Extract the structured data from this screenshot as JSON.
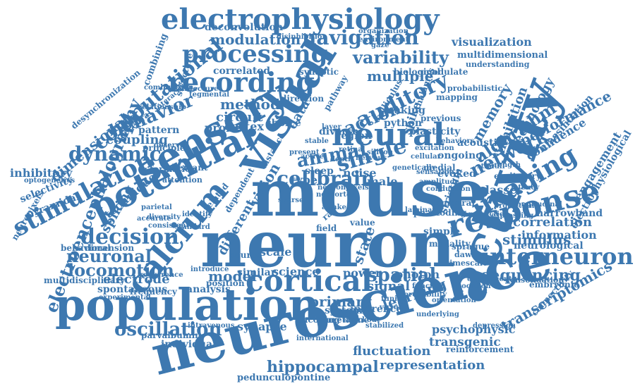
{
  "accent_color": "#3d78b0",
  "words": [
    "mouse",
    "neuron",
    "neuroscience",
    "activity",
    "population",
    "visual",
    "sensory",
    "electrophysiology",
    "recording",
    "processing",
    "potential",
    "calcium",
    "neural",
    "cortical",
    "response",
    "imaging",
    "interneuron",
    "stimulation",
    "navigation",
    "modulation",
    "variability",
    "auditory",
    "action",
    "animal",
    "cellbrain",
    "single",
    "network",
    "algorithm",
    "decision",
    "dynamic",
    "behavior",
    "computational",
    "electroencephalography",
    "locomotion",
    "oscillation",
    "hippocampal",
    "representation",
    "fluctuation",
    "transgenic",
    "spatial",
    "sequencing",
    "transcriptomics",
    "stimulus",
    "correlation",
    "information",
    "neurological",
    "performance",
    "engagement",
    "memory",
    "inhibition",
    "technology",
    "primary",
    "learning",
    "visualization",
    "multidimensional",
    "multiple",
    "method",
    "circuit",
    "probe",
    "electrode",
    "spontaneous",
    "frequency",
    "model",
    "cortex",
    "synapse",
    "individual",
    "parvalbumin",
    "pedunculopontine",
    "psychophysic",
    "inhibitory",
    "selectivity",
    "pyramidal",
    "neuropixels",
    "dimensional",
    "coupling",
    "combining",
    "desynchronization",
    "deconvolution",
    "correlated",
    "synaptic",
    "biological",
    "modulate",
    "understanding",
    "spike",
    "striatum",
    "classes",
    "acoustic",
    "evoked",
    "ongoing",
    "confidence",
    "classification",
    "excitatory",
    "narrowband",
    "electrophysiological",
    "connectivity",
    "consolidation",
    "embryonic",
    "reinforcement",
    "science",
    "system",
    "inference",
    "encoding",
    "urethane",
    "analysis",
    "multidisciplinary",
    "behavioral",
    "dimension",
    "neuronal",
    "spiking",
    "technique",
    "pattern",
    "structure",
    "vision",
    "signal",
    "photon",
    "power",
    "state",
    "type",
    "noise",
    "male",
    "sleep",
    "scale",
    "distance",
    "different",
    "similar",
    "diverse",
    "plasticity",
    "previous",
    "mapping",
    "probabilistic",
    "making",
    "python",
    "data",
    "choice",
    "region",
    "direction",
    "pathway",
    "colliculus",
    "thalamus",
    "cerebral",
    "principle",
    "formation",
    "aberrant",
    "attention",
    "dependent",
    "position",
    "source",
    "field",
    "value",
    "phase",
    "simple",
    "modality",
    "temporal",
    "coding",
    "timescale",
    "sprague",
    "dawley",
    "medial",
    "sensation",
    "optogenetics",
    "knockout",
    "intravenous",
    "international",
    "stabilized",
    "underlying",
    "allocation",
    "disinhibition",
    "organization",
    "environment",
    "gaze",
    "layer",
    "stable",
    "rat",
    "awake",
    "neocortex",
    "depth",
    "present",
    "active",
    "observed",
    "parietal",
    "accurate",
    "related",
    "diversity",
    "consistent",
    "experimental",
    "recurrence",
    "introduce",
    "nervous",
    "genetically",
    "cellular",
    "laminar",
    "behaviors",
    "excitation",
    "amplitude",
    "conduction",
    "expressing",
    "longitudinal",
    "projection",
    "prediction",
    "retinal",
    "neuronpixels",
    "sparse",
    "silicon",
    "interactive",
    "architecture",
    "relationship",
    "tegmental",
    "combination",
    "standard",
    "identify",
    "experimenta",
    "function",
    "probability",
    "orientation",
    "virtual",
    "tuning",
    "depression",
    "strength",
    "latency",
    "stimuli"
  ]
}
